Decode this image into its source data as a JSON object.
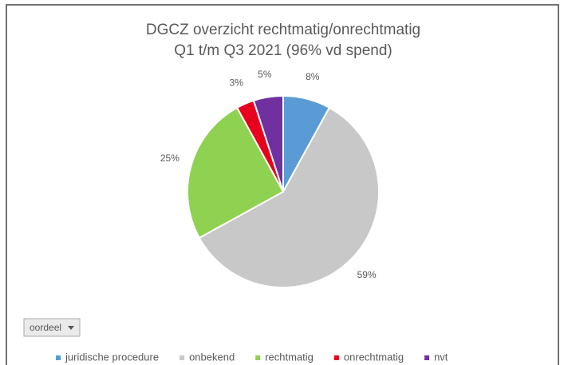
{
  "chart_data": {
    "type": "pie",
    "title": "DGCZ overzicht rechtmatig/onrechtmatig",
    "subtitle": "Q1 t/m Q3 2021 (96% vd spend)",
    "categories": [
      "juridische procedure",
      "onbekend",
      "rechtmatig",
      "onrechtmatig",
      "nvt"
    ],
    "values": [
      8,
      59,
      25,
      3,
      5
    ],
    "value_labels": [
      "8%",
      "59%",
      "25%",
      "3%",
      "5%"
    ],
    "colors": [
      "#5b9bd5",
      "#c8c8c8",
      "#8fd150",
      "#e8001c",
      "#7030a0"
    ],
    "filter_field": "oordeel",
    "legend": "bottom"
  }
}
